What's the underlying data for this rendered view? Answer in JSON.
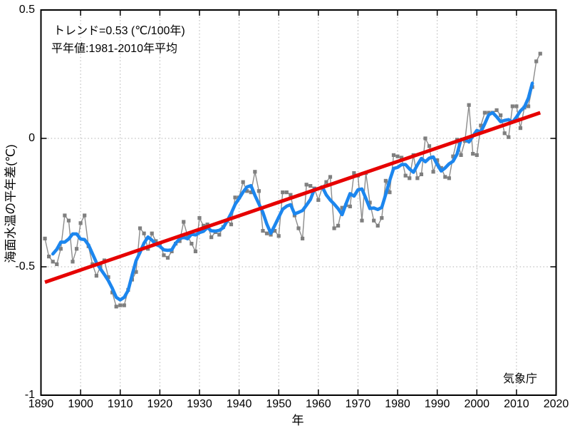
{
  "annotations": {
    "trend_label": "トレンド=0.53 (℃/100年)",
    "baseline_label": "平年値:1981-2010年平均",
    "agency": "気象庁"
  },
  "axes": {
    "xlabel": "年",
    "ylabel": "海面水温の平年差(℃)",
    "x_tick_labels": [
      "1890",
      "1900",
      "1910",
      "1920",
      "1930",
      "1940",
      "1950",
      "1960",
      "1970",
      "1980",
      "1990",
      "2000",
      "2010",
      "2020"
    ],
    "y_tick_labels": [
      "0.5",
      "0",
      "-0.5",
      "-1"
    ],
    "grid_color": "#b0b0b0",
    "axis_color": "#000000"
  },
  "chart_data": {
    "type": "line",
    "title": "",
    "xlabel": "年",
    "ylabel": "海面水温の平年差(℃)",
    "xlim": [
      1890,
      2020
    ],
    "ylim": [
      -1,
      0.5
    ],
    "x_ticks": [
      1890,
      1900,
      1910,
      1920,
      1930,
      1940,
      1950,
      1960,
      1970,
      1980,
      1990,
      2000,
      2010,
      2020
    ],
    "y_ticks": [
      0.5,
      0,
      -0.5,
      -1
    ],
    "grid": true,
    "gridline_y_values": [
      0,
      -0.5
    ],
    "annual": {
      "name": "annual-anomaly",
      "marker": "square",
      "marker_color": "#7f7f7f",
      "line_color": "#8c8c8c",
      "start_year": 1891,
      "values": [
        -0.39,
        -0.46,
        -0.48,
        -0.49,
        -0.43,
        -0.3,
        -0.32,
        -0.48,
        -0.43,
        -0.33,
        -0.3,
        -0.42,
        -0.49,
        -0.535,
        -0.5,
        -0.475,
        -0.54,
        -0.6,
        -0.655,
        -0.65,
        -0.65,
        -0.59,
        -0.55,
        -0.52,
        -0.35,
        -0.37,
        -0.43,
        -0.37,
        -0.4,
        -0.41,
        -0.455,
        -0.465,
        -0.44,
        -0.41,
        -0.4,
        -0.325,
        -0.38,
        -0.41,
        -0.44,
        -0.31,
        -0.34,
        -0.335,
        -0.385,
        -0.365,
        -0.375,
        -0.345,
        -0.32,
        -0.335,
        -0.23,
        -0.23,
        -0.17,
        -0.205,
        -0.21,
        -0.13,
        -0.205,
        -0.36,
        -0.37,
        -0.375,
        -0.36,
        -0.38,
        -0.21,
        -0.21,
        -0.22,
        -0.3,
        -0.35,
        -0.39,
        -0.18,
        -0.185,
        -0.195,
        -0.24,
        -0.19,
        -0.17,
        -0.15,
        -0.35,
        -0.34,
        -0.27,
        -0.26,
        -0.265,
        -0.135,
        -0.145,
        -0.32,
        -0.135,
        -0.25,
        -0.32,
        -0.34,
        -0.31,
        -0.165,
        -0.21,
        -0.065,
        -0.07,
        -0.075,
        -0.145,
        -0.155,
        -0.065,
        -0.155,
        -0.14,
        0.0,
        -0.03,
        -0.13,
        -0.085,
        -0.115,
        -0.15,
        -0.155,
        -0.07,
        -0.005,
        -0.065,
        -0.01,
        0.13,
        -0.06,
        -0.065,
        0.05,
        0.1,
        0.1,
        0.1,
        0.11,
        0.09,
        0.02,
        0.005,
        0.125,
        0.125,
        0.04,
        0.12,
        0.125,
        0.2,
        0.3,
        0.33
      ]
    },
    "running_mean": {
      "name": "5yr-running-mean",
      "window": 5,
      "color": "#1c86ee",
      "width": 4.6
    },
    "trend": {
      "name": "linear-trend",
      "color": "#e60000",
      "width": 5,
      "slope_c_per_100yr": 0.53,
      "x": [
        1891,
        2016
      ],
      "values": [
        -0.56,
        0.1
      ]
    },
    "legend_position": "none"
  }
}
